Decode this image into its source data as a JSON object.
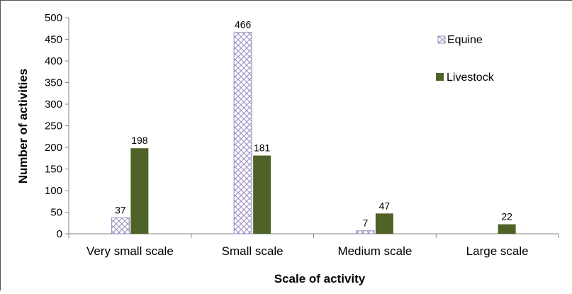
{
  "chart_data": {
    "type": "bar",
    "title": "",
    "xlabel": "Scale of activity",
    "ylabel": "Number of activities",
    "categories": [
      "Very small scale",
      "Small scale",
      "Medium scale",
      "Large scale"
    ],
    "series": [
      {
        "name": "Equine",
        "values": [
          37,
          466,
          7,
          null
        ],
        "pattern": "crosshatch",
        "color": "#9b8fbf"
      },
      {
        "name": "Livestock",
        "values": [
          198,
          181,
          47,
          22
        ],
        "color": "#4f6228"
      }
    ],
    "ylim": [
      0,
      500
    ],
    "yticks": [
      "0",
      "50",
      "100",
      "150",
      "200",
      "250",
      "300",
      "350",
      "400",
      "450",
      "500"
    ],
    "grid": false,
    "legend": "top-right"
  }
}
